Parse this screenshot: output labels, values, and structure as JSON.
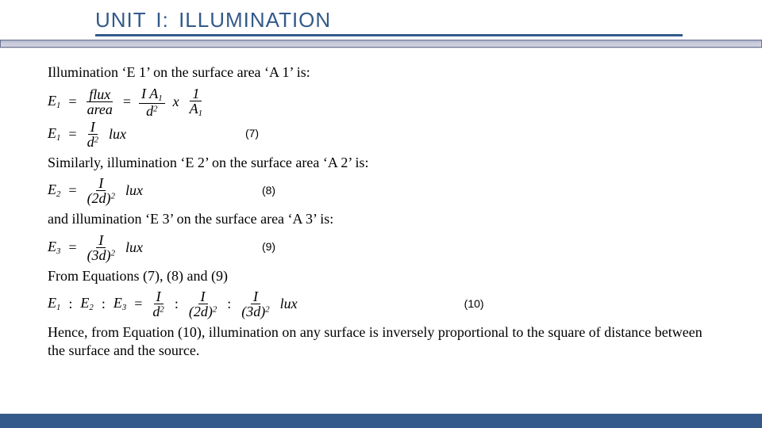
{
  "title": "UNIT I: ILLUMINATION",
  "p1": "Illumination ‘E 1’ on the surface area ‘A 1’ is:",
  "eq1a": {
    "lhs": "E",
    "sub": "1",
    "n1": "flux",
    "d1": "area",
    "n2": "I A",
    "n2sub": "1",
    "d2": "d",
    "d2sup": "2",
    "n3": "1",
    "d3": "A",
    "d3sub": "1"
  },
  "eq1b": {
    "lhs": "E",
    "sub": "1",
    "num": "I",
    "den": "d",
    "densup": "2",
    "trail": " lux",
    "label": "(7)"
  },
  "p2": "Similarly, illumination ‘E 2’ on the surface area ‘A 2’ is:",
  "eq2": {
    "lhs": "E",
    "sub": "2",
    "num": "I",
    "den": "(2d)",
    "densup": "2",
    "trail": " lux",
    "label": "(8)"
  },
  "p3": "and illumination ‘E 3’ on the surface area ‘A 3’ is:",
  "eq3": {
    "lhs": "E",
    "sub": "3",
    "num": "I",
    "den": "(3d)",
    "densup": "2",
    "trail": " lux",
    "label": "(9)"
  },
  "p4": "From Equations (7), (8) and (9)",
  "eq4": {
    "s1": {
      "e": "E",
      "i": "1"
    },
    "s2": {
      "e": "E",
      "i": "2"
    },
    "s3": {
      "e": "E",
      "i": "3"
    },
    "f1": {
      "n": "I",
      "d": "d",
      "p": "2"
    },
    "f2": {
      "n": "I",
      "d": "(2d)",
      "p": "2"
    },
    "f3": {
      "n": "I",
      "d": "(3d)",
      "p": "2"
    },
    "trail": " lux",
    "label": "(10)"
  },
  "p5": "Hence, from Equation (10), illumination on any surface is inversely proportional to the square of distance between the surface and the source.",
  "colors": {
    "accent": "#335a8a",
    "band_top": "#7c84a7",
    "band_bot": "#d0d3e0",
    "text": "#000000",
    "bg": "#ffffff"
  },
  "fontsizes": {
    "title": 26,
    "body": 18,
    "eqlabel": 14
  }
}
